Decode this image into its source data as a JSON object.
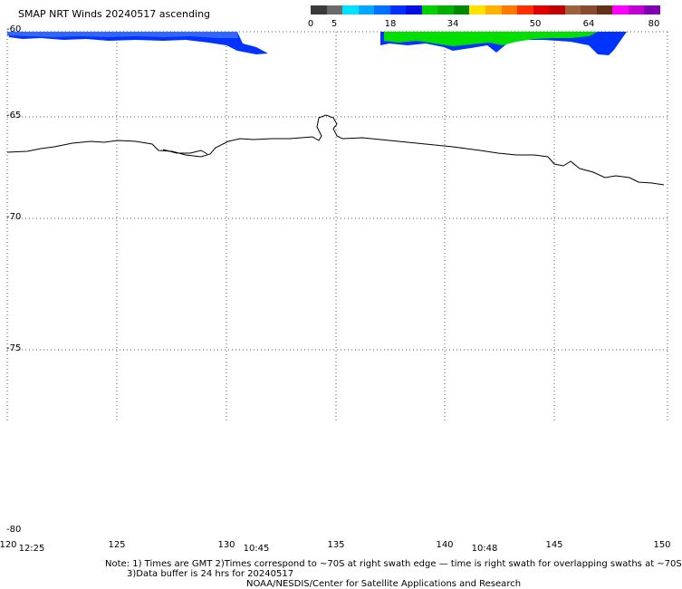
{
  "title": "SMAP NRT Winds 20240517 ascending",
  "colorbar": {
    "ticks": [
      "0",
      "5",
      "18",
      "34",
      "50",
      "64",
      "80"
    ],
    "colors": [
      "#3a3a3a",
      "#6a6a6a",
      "#00e0ff",
      "#00a8ff",
      "#0070ff",
      "#0030ff",
      "#0010e0",
      "#00d000",
      "#00b000",
      "#008800",
      "#ffe000",
      "#ffb000",
      "#ff7a00",
      "#ff3000",
      "#e00000",
      "#c00000",
      "#a06040",
      "#8a4a30",
      "#603018",
      "#ff00ff",
      "#c000d0",
      "#8000b0"
    ]
  },
  "axes": {
    "lat_labels": [
      "-60",
      "-65",
      "-70",
      "-75",
      "-80"
    ],
    "lon_labels": [
      "120",
      "125",
      "130",
      "135",
      "140",
      "145",
      "150"
    ]
  },
  "time_labels": [
    "12:25",
    "10:45",
    "10:48"
  ],
  "notes": {
    "line1": "Note: 1) Times are GMT 2)Times correspond to ~70S at right swath edge — time is right swath for overlapping swaths at ~70S",
    "line2": "3)Data buffer is 24 hrs for 20240517",
    "credit": "NOAA/NESDIS/Center for Satellite Applications and Research"
  },
  "colors": {
    "swath_blue": "#0033ff",
    "swath_green": "#00e000",
    "coastline": "#000000",
    "grid": "#555555"
  }
}
